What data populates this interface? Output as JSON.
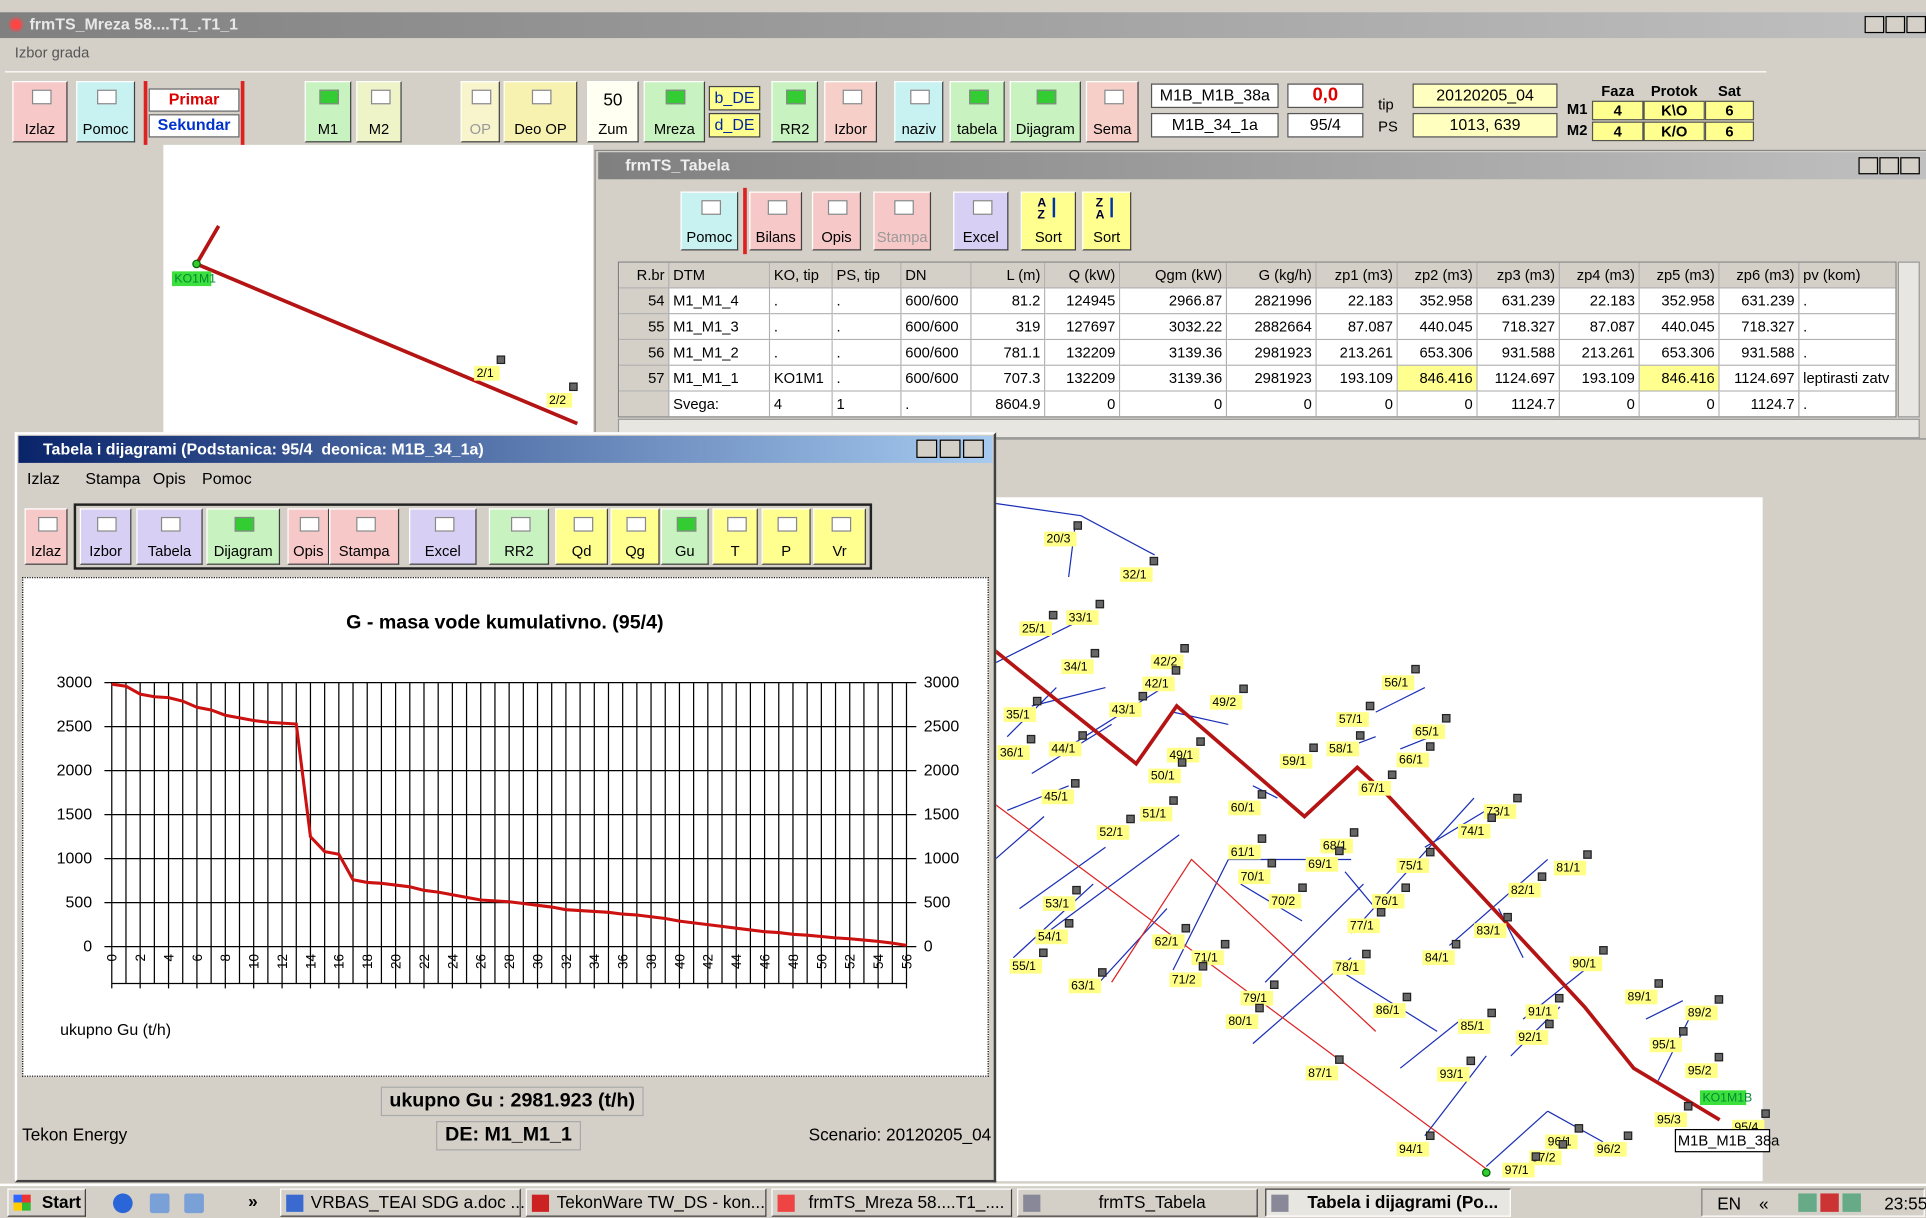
{
  "main_window": {
    "title": "frmTS_Mreza 58....T1_.T1_1",
    "menu": [
      "Izbor grada"
    ],
    "toolbar": [
      "Izlaz",
      "Pomoc",
      "M1",
      "M2",
      "OP",
      "Deo OP",
      "Zum",
      "Mreza",
      "RR2",
      "Izbor",
      "naziv",
      "tabela",
      "Dijagram",
      "Sema"
    ],
    "primar": "Primar",
    "sekundar": "Sekundar",
    "zoom": "50",
    "de_buttons": [
      "b_DE",
      "d_DE"
    ],
    "fields": {
      "deonica_top": "M1B_M1B_38a",
      "deonica_bottom": "M1B_34_1a",
      "value_top": "0,0",
      "value_bottom": "95/4",
      "tip": "tip",
      "ps": "PS",
      "scenario": "20120205_04",
      "coords": "1013, 639"
    },
    "status_table": {
      "header": [
        "Faza",
        "Protok",
        "Sat"
      ],
      "rows": [
        [
          "M1",
          "4",
          "K\\O",
          "6"
        ],
        [
          "M2",
          "4",
          "K/O",
          "6"
        ]
      ]
    }
  },
  "tabela_window": {
    "title": "frmTS_Tabela",
    "toolbar": [
      "Pomoc",
      "Bilans",
      "Opis",
      "Stampa",
      "Excel",
      "Sort",
      "Sort"
    ],
    "sort_icons": [
      [
        "A",
        "Z"
      ],
      [
        "Z",
        "A"
      ]
    ],
    "table": {
      "columns": [
        "R.br",
        "DTM",
        "KO, tip",
        "PS, tip",
        "DN",
        "L (m)",
        "Q (kW)",
        "Qgm (kW)",
        "G (kg/h)",
        "zp1 (m3)",
        "zp2 (m3)",
        "zp3 (m3)",
        "zp4 (m3)",
        "zp5 (m3)",
        "zp6 (m3)",
        "pv (kom)"
      ],
      "rows": [
        [
          "54",
          "M1_M1_4",
          ".",
          ".",
          "600/600",
          "81.2",
          "124945",
          "2966.87",
          "2821996",
          "22.183",
          "352.958",
          "631.239",
          "22.183",
          "352.958",
          "631.239",
          "."
        ],
        [
          "55",
          "M1_M1_3",
          ".",
          ".",
          "600/600",
          "319",
          "127697",
          "3032.22",
          "2882664",
          "87.087",
          "440.045",
          "718.327",
          "87.087",
          "440.045",
          "718.327",
          "."
        ],
        [
          "56",
          "M1_M1_2",
          ".",
          ".",
          "600/600",
          "781.1",
          "132209",
          "3139.36",
          "2981923",
          "213.261",
          "653.306",
          "931.588",
          "213.261",
          "653.306",
          "931.588",
          "."
        ],
        [
          "57",
          "M1_M1_1",
          "KO1M1",
          ".",
          "600/600",
          "707.3",
          "132209",
          "3139.36",
          "2981923",
          "193.109",
          "846.416",
          "1124.697",
          "193.109",
          "846.416",
          "1124.697",
          "leptirasti zatv"
        ],
        [
          null,
          "Svega:",
          "4",
          "1",
          ".",
          "8604.9",
          "0",
          "0",
          "0",
          "0",
          "0",
          "1124.7",
          "0",
          "0",
          "1124.7",
          "."
        ]
      ]
    }
  },
  "diagram_window": {
    "title": "Tabela i dijagrami (Podstanica: 95/4  deonica: M1B_34_1a)",
    "menu": [
      "Izlaz",
      "Stampa",
      "Opis",
      "Pomoc"
    ],
    "toolbar": [
      "Izlaz",
      "Izbor",
      "Tabela",
      "Dijagram",
      "Opis",
      "Stampa",
      "Excel",
      "RR2",
      "Qd",
      "Qg",
      "Gu",
      "T",
      "P",
      "Vr"
    ],
    "total": "ukupno Gu : 2981.923 (t/h)",
    "de": "DE: M1_M1_1",
    "company": "Tekon Energy",
    "scenario": "Scenario: 20120205_04"
  },
  "chart_data": {
    "type": "line",
    "title": "G - masa vode kumulativno. (95/4)",
    "x": [
      0,
      1,
      2,
      3,
      4,
      5,
      6,
      7,
      8,
      9,
      10,
      11,
      12,
      13,
      14,
      15,
      16,
      17,
      18,
      19,
      20,
      21,
      22,
      23,
      24,
      25,
      26,
      27,
      28,
      29,
      30,
      31,
      32,
      33,
      34,
      35,
      36,
      37,
      38,
      39,
      40,
      41,
      42,
      43,
      44,
      45,
      46,
      47,
      48,
      49,
      50,
      51,
      52,
      53,
      54,
      55,
      56
    ],
    "series": [
      {
        "name": "ukupno Gu (t/h)",
        "color": "#cc1111",
        "values": [
          2982,
          2960,
          2870,
          2840,
          2830,
          2790,
          2720,
          2690,
          2630,
          2600,
          2570,
          2550,
          2540,
          2530,
          1250,
          1080,
          1050,
          760,
          730,
          720,
          700,
          680,
          640,
          620,
          590,
          560,
          530,
          520,
          510,
          490,
          470,
          450,
          420,
          410,
          400,
          390,
          370,
          360,
          340,
          320,
          290,
          270,
          250,
          230,
          210,
          190,
          170,
          160,
          140,
          130,
          115,
          100,
          90,
          75,
          60,
          40,
          15
        ]
      }
    ],
    "xlim": [
      0,
      56
    ],
    "xticks": [
      0,
      2,
      4,
      6,
      8,
      10,
      12,
      14,
      16,
      18,
      20,
      22,
      24,
      26,
      28,
      30,
      32,
      34,
      36,
      38,
      40,
      42,
      44,
      46,
      48,
      50,
      52,
      54,
      56
    ],
    "ylim": [
      0,
      3000
    ],
    "yticks": [
      0,
      500,
      1000,
      1500,
      2000,
      2500,
      3000
    ],
    "y2lim": [
      0,
      3000
    ],
    "y2ticks": [
      0,
      500,
      1000,
      1500,
      2000,
      2500,
      3000
    ],
    "grid": true
  },
  "map": {
    "labels": [
      "KO1M1",
      "2/1",
      "2/2",
      "20/3",
      "32/1",
      "25/1",
      "33/1",
      "34/1",
      "42/2",
      "42/1",
      "43/1",
      "49/2",
      "35/1",
      "44/1",
      "49/1",
      "50/1",
      "36/1",
      "59/1",
      "56/1",
      "57/1",
      "65/1",
      "58/1",
      "66/1",
      "67/1",
      "60/1",
      "45/1",
      "51/1",
      "52/1",
      "73/1",
      "74/1",
      "68/1",
      "69/1",
      "61/1",
      "70/1",
      "75/1",
      "81/1",
      "82/1",
      "70/2",
      "76/1",
      "53/1",
      "77/1",
      "83/1",
      "54/1",
      "62/1",
      "71/1",
      "84/1",
      "55/1",
      "71/2",
      "63/1",
      "78/1",
      "90/1",
      "79/1",
      "86/1",
      "89/1",
      "89/2",
      "91/1",
      "80/1",
      "85/1",
      "92/1",
      "95/1",
      "95/2",
      "87/1",
      "93/1",
      "KO1M1B",
      "95/3",
      "95/4",
      "94/1",
      "96/1",
      "96/2",
      "97/2",
      "97/1",
      "M1B_M1B_38a"
    ]
  },
  "taskbar": {
    "start": "Start",
    "more": "»",
    "items": [
      "VRBAS_TEAI SDG a.doc ...",
      "TekonWare TW_DS - kon...",
      "frmTS_Mreza 58....T1_....",
      "frmTS_Tabela",
      "Tabela i dijagrami (Po..."
    ],
    "tray": [
      "EN",
      "«",
      "23:55"
    ]
  }
}
